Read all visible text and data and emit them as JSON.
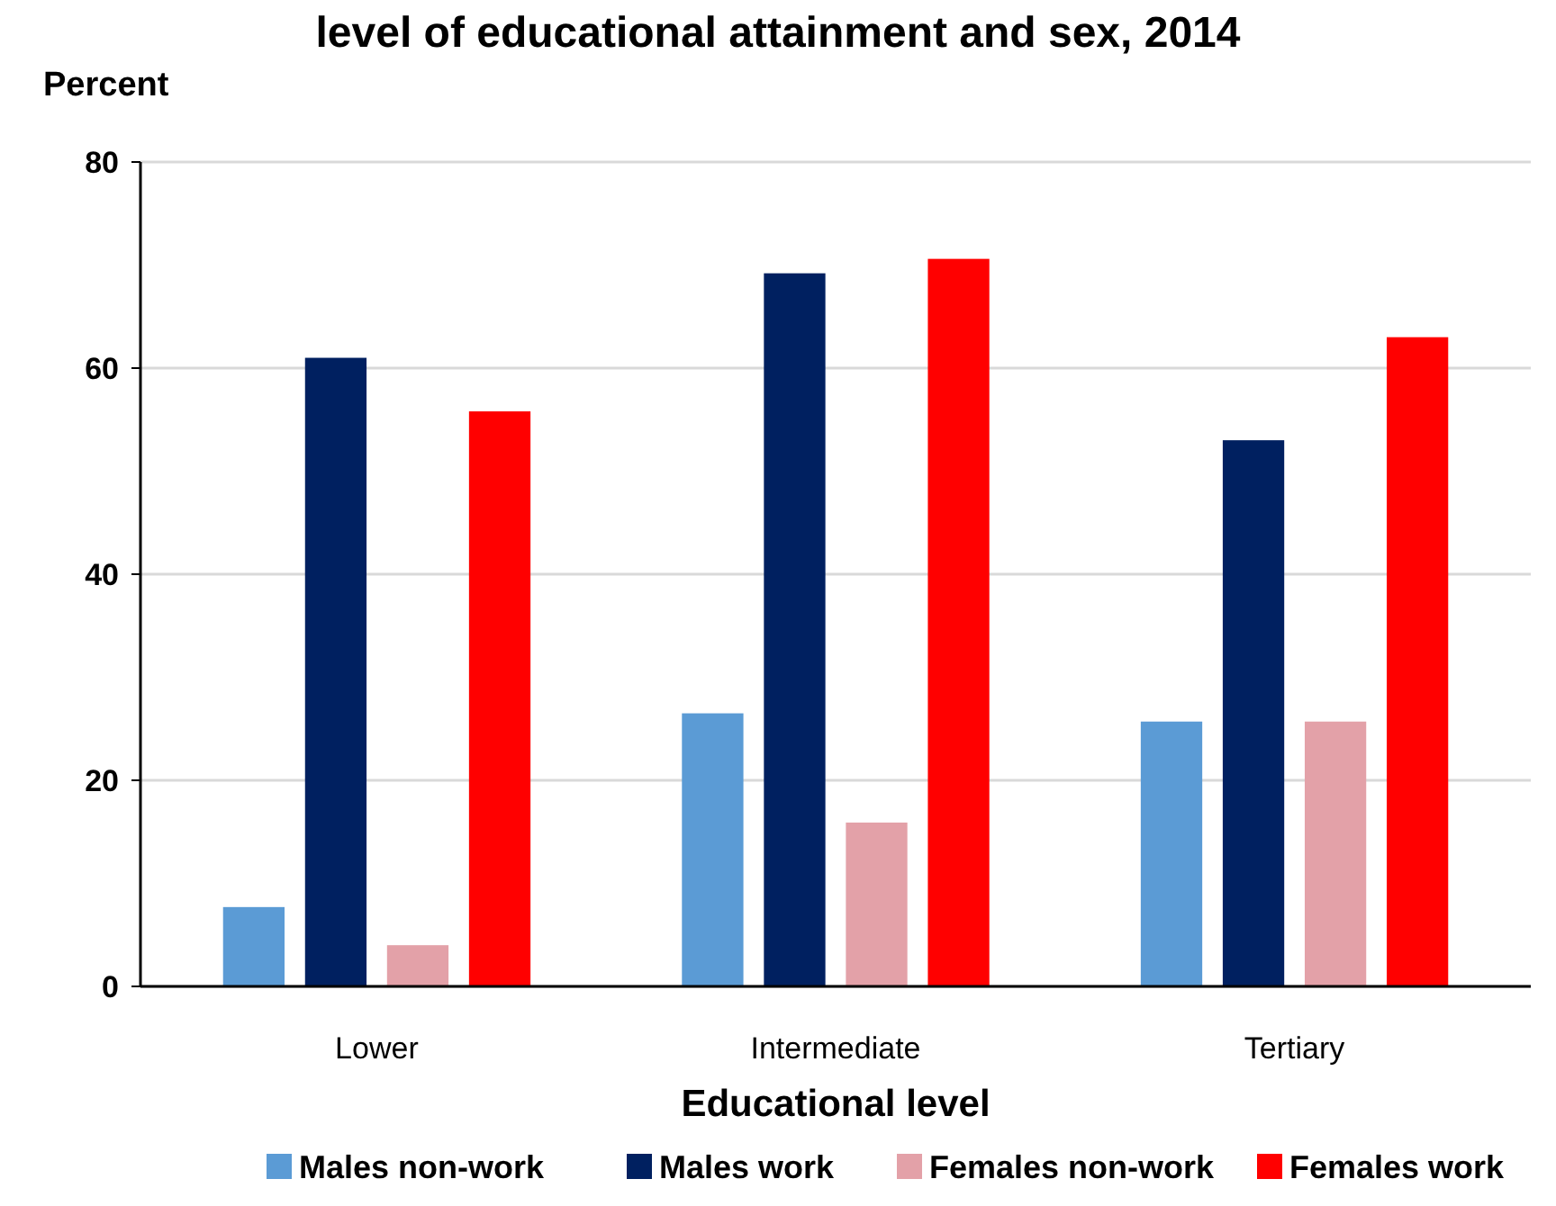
{
  "chart_data": {
    "type": "bar",
    "title": "level of educational attainment and sex, 2014",
    "ylabel": "Percent",
    "xlabel": "Educational level",
    "categories": [
      "Lower",
      "Intermediate",
      "Tertiary"
    ],
    "series": [
      {
        "name": "Males non-work",
        "color": "#5b9bd5",
        "values": [
          7.7,
          26.5,
          25.7
        ]
      },
      {
        "name": "Males work",
        "color": "#002060",
        "values": [
          61,
          69.2,
          53
        ]
      },
      {
        "name": "Females non-work",
        "color": "#e3a1a8",
        "values": [
          4,
          15.9,
          25.7
        ]
      },
      {
        "name": "Females work",
        "color": "#ff0000",
        "values": [
          55.8,
          70.6,
          63
        ]
      }
    ],
    "ylim": [
      0,
      80
    ],
    "yticks": [
      0,
      20,
      40,
      60,
      80
    ],
    "grid": "y",
    "legend": "bottom"
  }
}
